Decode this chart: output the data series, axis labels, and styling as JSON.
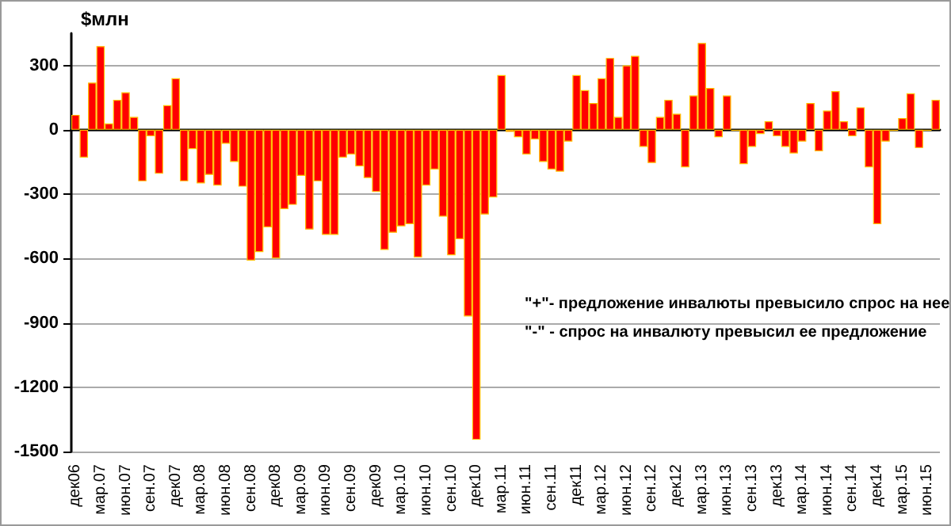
{
  "chart_data": {
    "type": "bar",
    "ylabel": "$млн",
    "categories": [
      "дек06",
      null,
      null,
      "мар.07",
      null,
      null,
      "июн.07",
      null,
      null,
      "сен.07",
      null,
      null,
      "дек07",
      null,
      null,
      "мар.08",
      null,
      null,
      "июн.08",
      null,
      null,
      "сен.08",
      null,
      null,
      "дек08",
      null,
      null,
      "мар.09",
      null,
      null,
      "июн.09",
      null,
      null,
      "сен.09",
      null,
      null,
      "дек09",
      null,
      null,
      "мар.10",
      null,
      null,
      "июн.10",
      null,
      null,
      "сен.10",
      null,
      null,
      "дек10",
      null,
      null,
      "мар.11",
      null,
      null,
      "июн.11",
      null,
      null,
      "сен.11",
      null,
      null,
      "дек11",
      null,
      null,
      "мар.12",
      null,
      null,
      "июн.12",
      null,
      null,
      "сен.12",
      null,
      null,
      "дек12",
      null,
      null,
      "мар.13",
      null,
      null,
      "июн.13",
      null,
      null,
      "сен.13",
      null,
      null,
      "дек13",
      null,
      null,
      "мар.14",
      null,
      null,
      "июн.14",
      null,
      null,
      "сен.14",
      null,
      null,
      "дек14",
      null,
      null,
      "мар.15",
      null,
      null,
      "июн.15",
      null
    ],
    "values": [
      70,
      -130,
      220,
      390,
      30,
      140,
      175,
      60,
      -240,
      -30,
      -205,
      115,
      240,
      -240,
      -90,
      -250,
      -210,
      -260,
      -65,
      -150,
      -265,
      -610,
      -570,
      -455,
      -600,
      -370,
      -350,
      -215,
      -465,
      -240,
      -490,
      -490,
      -130,
      -115,
      -170,
      -225,
      -290,
      -560,
      -480,
      -450,
      -440,
      -595,
      -260,
      -185,
      -405,
      -585,
      -510,
      -870,
      -1445,
      -395,
      -315,
      255,
      -10,
      -35,
      -115,
      -45,
      -150,
      -185,
      -195,
      -55,
      255,
      185,
      125,
      240,
      335,
      60,
      300,
      345,
      -80,
      -155,
      60,
      140,
      75,
      -175,
      160,
      405,
      195,
      -35,
      160,
      -5,
      -160,
      -80,
      -20,
      40,
      -30,
      -80,
      -110,
      -55,
      125,
      -100,
      90,
      180,
      40,
      -30,
      105,
      -175,
      -440,
      -55,
      -5,
      55,
      170,
      -85,
      -5,
      140
    ],
    "color": "#ff0000",
    "ylim": [
      -1500,
      450
    ],
    "yticks": [
      -1500,
      -1200,
      -900,
      -600,
      -300,
      0,
      300
    ],
    "grid": "y",
    "annotations": [
      "\"+\"- предложение инвалюты превысило спрос на нее",
      "\"-\" - спрос на инвалюту превысил ее предложение"
    ]
  }
}
